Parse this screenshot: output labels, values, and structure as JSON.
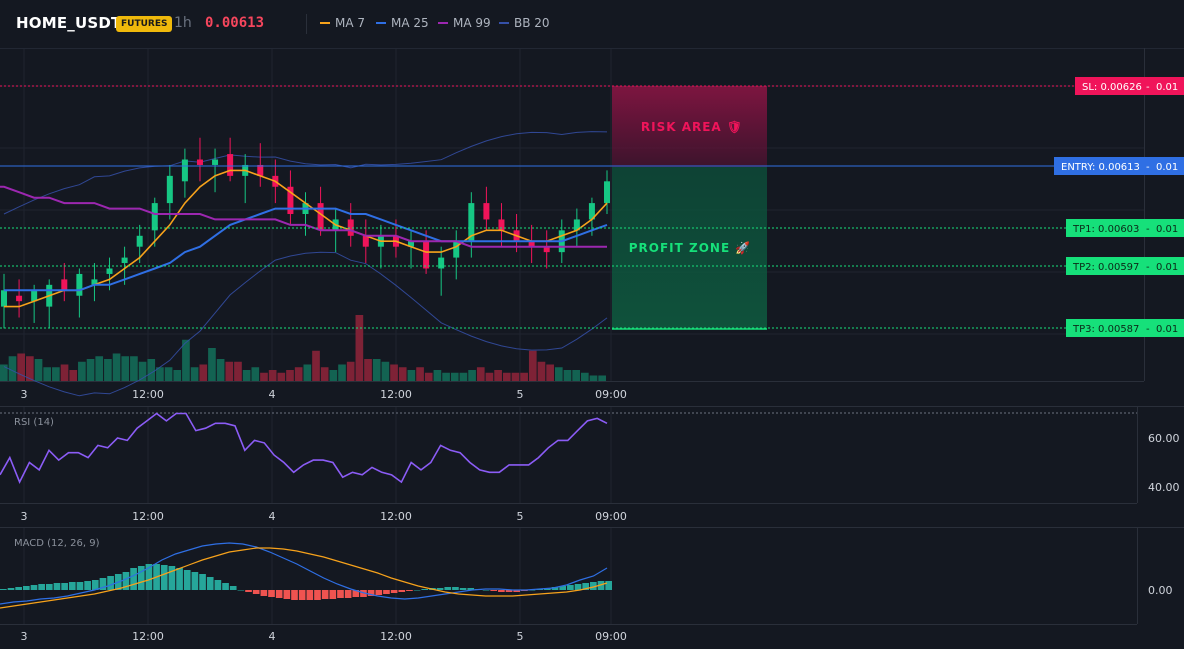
{
  "header": {
    "symbol": "HOME_USDT",
    "badge": "FUTURES",
    "timeframe": "1h",
    "price": "0.00613",
    "legend": [
      {
        "label": "MA 7",
        "color": "#f7a21b"
      },
      {
        "label": "MA 25",
        "color": "#2f6fe4"
      },
      {
        "label": "MA 99",
        "color": "#9c27b0"
      },
      {
        "label": "BB 20",
        "color": "#3550a8"
      }
    ]
  },
  "levels": {
    "sl": {
      "label": "SL: 0.00626",
      "qty": "0.01",
      "color": "#f0145a"
    },
    "entry": {
      "label": "ENTRY: 0.00613",
      "qty": "0.01",
      "color": "#2f6fe4"
    },
    "tp1": {
      "label": "TP1: 0.00603",
      "qty": "0.01",
      "color": "#16e07a"
    },
    "tp2": {
      "label": "TP2: 0.00597",
      "qty": "0.01",
      "color": "#16e07a"
    },
    "tp3": {
      "label": "TP3: 0.00587",
      "qty": "0.01",
      "color": "#16e07a"
    }
  },
  "zones": {
    "risk": "RISK AREA 🛡",
    "profit": "PROFIT ZONE 🚀"
  },
  "time_labels": [
    "3",
    "12:00",
    "4",
    "12:00",
    "5",
    "09:00"
  ],
  "rsi": {
    "title": "RSI (14)",
    "ticks": [
      "60.00",
      "40.00"
    ],
    "tick_values": [
      60,
      40
    ],
    "values": [
      45,
      52,
      42,
      50,
      47,
      55,
      51,
      54,
      54,
      52,
      57,
      56,
      60,
      59,
      64,
      67,
      70,
      67,
      70,
      70,
      63,
      64,
      66,
      66,
      65,
      55,
      59,
      58,
      53,
      50,
      46,
      49,
      51,
      51,
      50,
      44,
      46,
      45,
      48,
      46,
      45,
      42,
      50,
      47,
      50,
      57,
      55,
      54,
      50,
      47,
      46,
      46,
      49,
      49,
      49,
      52,
      56,
      59,
      59,
      63,
      67,
      68,
      66
    ]
  },
  "macd": {
    "title": "MACD (12, 26, 9)",
    "ticks": [
      "0.00"
    ]
  },
  "chart_data": {
    "type": "candlestick",
    "symbol": "HOME_USDT",
    "timeframe": "1h",
    "ylim": [
      0.00578,
      0.00636
    ],
    "x_ticks": [
      "3",
      "12:00",
      "4",
      "12:00",
      "5",
      "09:00"
    ],
    "ohlc": [
      [
        0.0059,
        0.00596,
        0.00586,
        0.00593
      ],
      [
        0.00592,
        0.00595,
        0.00588,
        0.00591
      ],
      [
        0.00591,
        0.00594,
        0.00587,
        0.00593
      ],
      [
        0.0059,
        0.00595,
        0.00586,
        0.00594
      ],
      [
        0.00595,
        0.00598,
        0.00591,
        0.00593
      ],
      [
        0.00592,
        0.00597,
        0.00588,
        0.00596
      ],
      [
        0.00594,
        0.00598,
        0.00591,
        0.00595
      ],
      [
        0.00596,
        0.00599,
        0.00593,
        0.00597
      ],
      [
        0.00598,
        0.00601,
        0.00594,
        0.00599
      ],
      [
        0.00601,
        0.00605,
        0.00598,
        0.00603
      ],
      [
        0.00604,
        0.0061,
        0.00601,
        0.00609
      ],
      [
        0.00609,
        0.00616,
        0.00606,
        0.00614
      ],
      [
        0.00613,
        0.00619,
        0.0061,
        0.00617
      ],
      [
        0.00617,
        0.00621,
        0.00613,
        0.00616
      ],
      [
        0.00616,
        0.00619,
        0.00611,
        0.00617
      ],
      [
        0.00618,
        0.00621,
        0.00613,
        0.00614
      ],
      [
        0.00614,
        0.00618,
        0.00609,
        0.00616
      ],
      [
        0.00616,
        0.0062,
        0.00612,
        0.00614
      ],
      [
        0.00614,
        0.00617,
        0.00609,
        0.00612
      ],
      [
        0.00612,
        0.00615,
        0.00605,
        0.00607
      ],
      [
        0.00607,
        0.00611,
        0.00603,
        0.00609
      ],
      [
        0.00609,
        0.00612,
        0.00603,
        0.00604
      ],
      [
        0.00604,
        0.00608,
        0.006,
        0.00606
      ],
      [
        0.00606,
        0.00609,
        0.00601,
        0.00603
      ],
      [
        0.00603,
        0.00606,
        0.00598,
        0.00601
      ],
      [
        0.00601,
        0.00605,
        0.00597,
        0.00603
      ],
      [
        0.00603,
        0.00606,
        0.00599,
        0.00601
      ],
      [
        0.00601,
        0.00604,
        0.00597,
        0.00602
      ],
      [
        0.00602,
        0.00604,
        0.00596,
        0.00597
      ],
      [
        0.00597,
        0.00601,
        0.00592,
        0.00599
      ],
      [
        0.00599,
        0.00604,
        0.00595,
        0.00602
      ],
      [
        0.00602,
        0.00611,
        0.00599,
        0.00609
      ],
      [
        0.00609,
        0.00612,
        0.00604,
        0.00606
      ],
      [
        0.00606,
        0.00609,
        0.00601,
        0.00604
      ],
      [
        0.00604,
        0.00607,
        0.006,
        0.00602
      ],
      [
        0.00602,
        0.00605,
        0.00598,
        0.00601
      ],
      [
        0.00601,
        0.00604,
        0.00597,
        0.006
      ],
      [
        0.006,
        0.00606,
        0.00598,
        0.00604
      ],
      [
        0.00604,
        0.00608,
        0.00601,
        0.00606
      ],
      [
        0.00606,
        0.0061,
        0.00603,
        0.00609
      ],
      [
        0.00609,
        0.00615,
        0.00607,
        0.00613
      ]
    ],
    "series": [
      {
        "name": "MA 7",
        "values": [
          0.0059,
          0.0059,
          0.00591,
          0.00592,
          0.00593,
          0.00593,
          0.00594,
          0.00595,
          0.00597,
          0.00599,
          0.00602,
          0.00605,
          0.00609,
          0.00612,
          0.00614,
          0.00615,
          0.00615,
          0.00614,
          0.00613,
          0.00611,
          0.00609,
          0.00607,
          0.00605,
          0.00604,
          0.00603,
          0.00602,
          0.00602,
          0.00601,
          0.006,
          0.006,
          0.00601,
          0.00603,
          0.00604,
          0.00604,
          0.00603,
          0.00602,
          0.00602,
          0.00603,
          0.00604,
          0.00606,
          0.00609
        ]
      },
      {
        "name": "MA 25",
        "values": [
          0.00593,
          0.00593,
          0.00593,
          0.00593,
          0.00593,
          0.00593,
          0.00594,
          0.00594,
          0.00595,
          0.00596,
          0.00597,
          0.00598,
          0.006,
          0.00601,
          0.00603,
          0.00605,
          0.00606,
          0.00607,
          0.00608,
          0.00608,
          0.00608,
          0.00608,
          0.00608,
          0.00607,
          0.00607,
          0.00606,
          0.00605,
          0.00604,
          0.00603,
          0.00602,
          0.00602,
          0.00602,
          0.00602,
          0.00602,
          0.00602,
          0.00602,
          0.00602,
          0.00602,
          0.00603,
          0.00604,
          0.00605
        ]
      },
      {
        "name": "MA 99",
        "values": [
          0.00612,
          0.00611,
          0.0061,
          0.0061,
          0.00609,
          0.00609,
          0.00609,
          0.00608,
          0.00608,
          0.00608,
          0.00607,
          0.00607,
          0.00607,
          0.00607,
          0.00606,
          0.00606,
          0.00606,
          0.00606,
          0.00606,
          0.00605,
          0.00605,
          0.00604,
          0.00604,
          0.00604,
          0.00603,
          0.00603,
          0.00603,
          0.00602,
          0.00602,
          0.00602,
          0.00602,
          0.00601,
          0.00601,
          0.00601,
          0.00601,
          0.00601,
          0.00601,
          0.00601,
          0.00601,
          0.00601,
          0.00601
        ]
      }
    ],
    "volume": [
      6,
      9,
      10,
      9,
      8,
      5,
      5,
      6,
      4,
      7,
      8,
      9,
      8,
      10,
      9,
      9,
      7,
      8,
      5,
      5,
      4,
      15,
      5,
      6,
      12,
      8,
      7,
      7,
      4,
      5,
      3,
      4,
      3,
      4,
      5,
      6,
      11,
      5,
      4,
      6,
      7,
      24,
      8,
      8,
      7,
      6,
      5,
      4,
      5,
      3,
      4,
      3,
      3,
      3,
      4,
      5,
      3,
      4,
      3,
      3,
      3,
      11,
      7,
      6,
      5,
      4,
      4,
      3,
      2,
      2
    ],
    "macd_hist": [
      1,
      2,
      3,
      4,
      5,
      6,
      6,
      7,
      7,
      8,
      8,
      9,
      10,
      12,
      14,
      16,
      18,
      22,
      24,
      26,
      26,
      25,
      24,
      22,
      20,
      18,
      16,
      13,
      10,
      7,
      4,
      0,
      -2,
      -4,
      -6,
      -7,
      -8,
      -9,
      -10,
      -10,
      -10,
      -10,
      -9,
      -9,
      -8,
      -8,
      -7,
      -7,
      -6,
      -5,
      -4,
      -3,
      -2,
      -1,
      0,
      1,
      2,
      2,
      3,
      3,
      2,
      2,
      1,
      0,
      -1,
      -2,
      -2,
      -2,
      -1,
      0,
      1,
      2,
      3,
      4,
      5,
      6,
      7,
      8,
      9,
      9
    ],
    "macd_line": [
      -14,
      -12,
      -11,
      -9,
      -8,
      -6,
      -3,
      0,
      4,
      9,
      15,
      22,
      30,
      36,
      40,
      44,
      46,
      47,
      46,
      43,
      38,
      32,
      26,
      19,
      12,
      6,
      1,
      -3,
      -6,
      -8,
      -9,
      -8,
      -6,
      -4,
      -2,
      0,
      1,
      1,
      0,
      0,
      1,
      2,
      5,
      10,
      14,
      22
    ],
    "signal_line": [
      -18,
      -16,
      -14,
      -12,
      -10,
      -8,
      -6,
      -4,
      -1,
      2,
      6,
      10,
      15,
      20,
      25,
      30,
      34,
      38,
      40,
      42,
      42,
      41,
      39,
      36,
      33,
      29,
      25,
      21,
      17,
      12,
      8,
      4,
      1,
      -2,
      -4,
      -5,
      -6,
      -6,
      -6,
      -5,
      -4,
      -3,
      -2,
      0,
      3,
      7
    ]
  }
}
